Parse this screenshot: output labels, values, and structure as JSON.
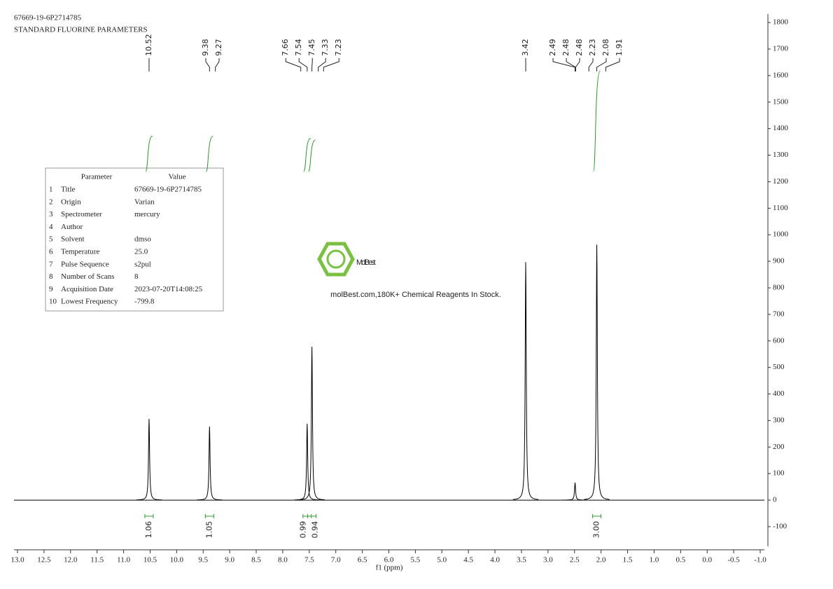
{
  "chart_data": {
    "type": "spectrum",
    "title": "67669-19-6P2714785",
    "subtitle": "STANDARD FLUORINE PARAMETERS",
    "xlabel": "f1 (ppm)",
    "xlim": [
      13,
      -1
    ],
    "xticks": [
      {
        "value": 13,
        "label": "13.0"
      },
      {
        "value": 12.5,
        "label": "12.5"
      },
      {
        "value": 12,
        "label": "12.0"
      },
      {
        "value": 11.5,
        "label": "11.5"
      },
      {
        "value": 11,
        "label": "11.0"
      },
      {
        "value": 10.5,
        "label": "10.5"
      },
      {
        "value": 10,
        "label": "10.0"
      },
      {
        "value": 9.5,
        "label": "9.5"
      },
      {
        "value": 9,
        "label": "9.0"
      },
      {
        "value": 8.5,
        "label": "8.5"
      },
      {
        "value": 8,
        "label": "8.0"
      },
      {
        "value": 7.5,
        "label": "7.5"
      },
      {
        "value": 7,
        "label": "7.0"
      },
      {
        "value": 6.5,
        "label": "6.5"
      },
      {
        "value": 6,
        "label": "6.0"
      },
      {
        "value": 5.5,
        "label": "5.5"
      },
      {
        "value": 5,
        "label": "5.0"
      },
      {
        "value": 4.5,
        "label": "4.5"
      },
      {
        "value": 4,
        "label": "4.0"
      },
      {
        "value": 3.5,
        "label": "3.5"
      },
      {
        "value": 3,
        "label": "3.0"
      },
      {
        "value": 2.5,
        "label": "2.5"
      },
      {
        "value": 2,
        "label": "2.0"
      },
      {
        "value": 1.5,
        "label": "1.5"
      },
      {
        "value": 1,
        "label": "1.0"
      },
      {
        "value": 0.5,
        "label": "0.5"
      },
      {
        "value": 0,
        "label": "0.0"
      },
      {
        "value": -0.5,
        "label": "-0.5"
      },
      {
        "value": -1,
        "label": "-1.0"
      }
    ],
    "ylim": [
      -174,
      1832
    ],
    "yticks": [
      -100,
      0,
      100,
      200,
      300,
      400,
      500,
      600,
      700,
      800,
      900,
      1000,
      1100,
      1200,
      1300,
      1400,
      1500,
      1600,
      1700,
      1800
    ],
    "color": "#000000",
    "peaks": {
      "x": [
        10.52,
        9.38,
        7.54,
        7.45,
        3.42,
        2.49,
        2.08
      ],
      "values": [
        306,
        277,
        288,
        578,
        897,
        66,
        963
      ]
    },
    "peak_labels": [
      10.52,
      9.38,
      9.27,
      7.66,
      7.54,
      7.45,
      7.33,
      7.23,
      3.42,
      2.49,
      2.48,
      2.48,
      2.23,
      2.08,
      1.91
    ],
    "integrals": {
      "color": "#2e9b2e",
      "x": [
        10.52,
        9.38,
        7.54,
        7.45,
        2.08
      ],
      "values": [
        1.06,
        1.05,
        0.99,
        0.94,
        3.0
      ],
      "value_labels": [
        "1.06",
        "1.05",
        "0.99",
        "0.94",
        "3.00"
      ]
    }
  },
  "parameter_table": {
    "header": [
      "Parameter",
      "Value"
    ],
    "rows": [
      [
        "1",
        "Title",
        "67669-19-6P2714785"
      ],
      [
        "2",
        "Origin",
        "Varian"
      ],
      [
        "3",
        "Spectrometer",
        "mercury"
      ],
      [
        "4",
        "Author"
      ],
      [
        "5",
        "Solvent",
        "dmso"
      ],
      [
        "6",
        "Temperature",
        "25.0"
      ],
      [
        "7",
        "Pulse Sequence",
        "s2pul"
      ],
      [
        "8",
        "Number of Scans",
        "8"
      ],
      [
        "9",
        "Acquisition Date",
        "2023-07-20T14:08:25"
      ],
      [
        "10",
        "Lowest Frequency",
        "-799.8"
      ]
    ]
  },
  "watermark": {
    "brand": "MolBest",
    "tagline": "molBest.com,180K+ Chemical Reagents In Stock."
  }
}
